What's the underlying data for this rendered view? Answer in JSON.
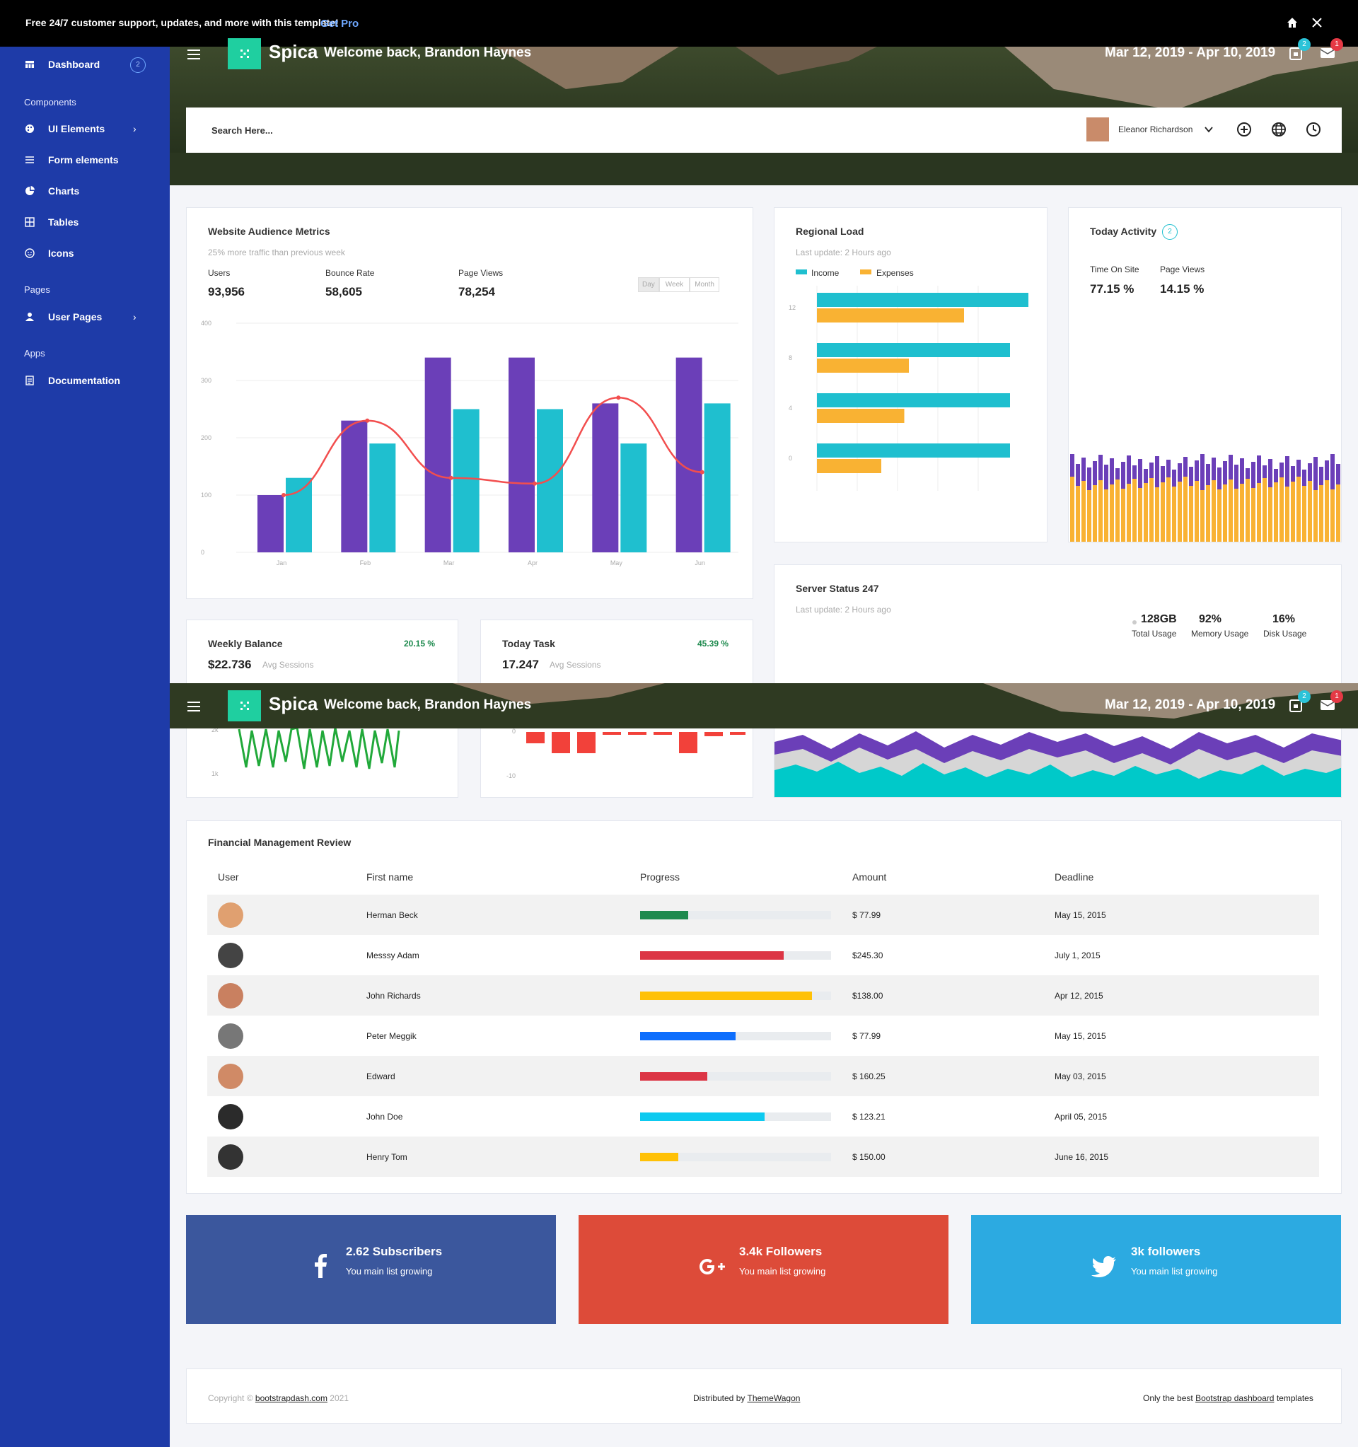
{
  "banner": {
    "message": "Free 24/7 customer support, updates, and more with this template!",
    "cta": "Get Pro"
  },
  "sidebar": {
    "items": [
      {
        "label": "Dashboard",
        "badge": "2",
        "icon": "grid-icon"
      },
      {
        "section": "Components"
      },
      {
        "label": "UI Elements",
        "icon": "palette-icon",
        "chevron": true
      },
      {
        "label": "Form elements",
        "icon": "list-icon"
      },
      {
        "label": "Charts",
        "icon": "pie-icon"
      },
      {
        "label": "Tables",
        "icon": "table-icon"
      },
      {
        "label": "Icons",
        "icon": "smile-icon"
      },
      {
        "section": "Pages"
      },
      {
        "label": "User Pages",
        "icon": "user-icon",
        "chevron": true
      },
      {
        "section": "Apps"
      },
      {
        "label": "Documentation",
        "icon": "doc-icon"
      }
    ]
  },
  "header": {
    "brand": "Spica",
    "welcome": "Welcome back, Brandon Haynes",
    "date_range": "Mar 12, 2019 - Apr 10, 2019",
    "bell_badge": "2",
    "mail_badge": "1"
  },
  "search": {
    "placeholder": "Search Here...",
    "user": "Eleanor Richardson"
  },
  "audience": {
    "title": "Website Audience Metrics",
    "subtitle": "25% more traffic than previous week",
    "metrics": [
      {
        "label": "Users",
        "value": "93,956"
      },
      {
        "label": "Bounce Rate",
        "value": "58,605"
      },
      {
        "label": "Page Views",
        "value": "78,254"
      }
    ],
    "toggles": [
      "Day",
      "Week",
      "Month"
    ]
  },
  "regional": {
    "title": "Regional Load",
    "subtitle": "Last update: 2 Hours ago",
    "legend": [
      "Income",
      "Expenses"
    ]
  },
  "activity": {
    "title": "Today Activity",
    "badge": "2",
    "metrics": [
      {
        "label": "Time On Site",
        "value": "77.15 %"
      },
      {
        "label": "Page Views",
        "value": "14.15 %"
      }
    ]
  },
  "server": {
    "title": "Server Status 247",
    "subtitle": "Last update: 2 Hours ago",
    "stats": [
      {
        "value": "128GB",
        "label": "Total Usage"
      },
      {
        "value": "92%",
        "label": "Memory Usage"
      },
      {
        "value": "16%",
        "label": "Disk Usage"
      }
    ]
  },
  "weekly": {
    "title": "Weekly Balance",
    "pct": "20.15 %",
    "value": "$22.736",
    "sub": "Avg Sessions",
    "ticks": [
      "2k",
      "1k"
    ]
  },
  "task": {
    "title": "Today Task",
    "pct": "45.39 %",
    "value": "17.247",
    "sub": "Avg Sessions",
    "ticks": [
      "0",
      "-10"
    ]
  },
  "finance": {
    "title": "Financial Management Review",
    "columns": [
      "User",
      "First name",
      "Progress",
      "Amount",
      "Deadline"
    ],
    "rows": [
      {
        "name": "Herman Beck",
        "progress": 25,
        "color": "#1e8a4e",
        "amount": "$ 77.99",
        "deadline": "May 15, 2015"
      },
      {
        "name": "Messsy Adam",
        "progress": 75,
        "color": "#dc3545",
        "amount": "$245.30",
        "deadline": "July 1, 2015"
      },
      {
        "name": "John Richards",
        "progress": 90,
        "color": "#ffc107",
        "amount": "$138.00",
        "deadline": "Apr 12, 2015"
      },
      {
        "name": "Peter Meggik",
        "progress": 50,
        "color": "#0d6efd",
        "amount": "$ 77.99",
        "deadline": "May 15, 2015"
      },
      {
        "name": "Edward",
        "progress": 35,
        "color": "#dc3545",
        "amount": "$ 160.25",
        "deadline": "May 03, 2015"
      },
      {
        "name": "John Doe",
        "progress": 65,
        "color": "#0dcaf0",
        "amount": "$ 123.21",
        "deadline": "April 05, 2015"
      },
      {
        "name": "Henry Tom",
        "progress": 20,
        "color": "#ffc107",
        "amount": "$ 150.00",
        "deadline": "June 16, 2015"
      }
    ]
  },
  "social": [
    {
      "title": "2.62 Subscribers",
      "sub": "You main list growing",
      "icon": "facebook-icon",
      "color": "#3b579d"
    },
    {
      "title": "3.4k Followers",
      "sub": "You main list growing",
      "icon": "google-plus-icon",
      "color": "#dd4b39"
    },
    {
      "title": "3k followers",
      "sub": "You main list growing",
      "icon": "twitter-icon",
      "color": "#2caae1"
    }
  ],
  "footer": {
    "copyright": "Copyright ©",
    "link1": "bootstrapdash.com",
    "year": "2021",
    "distributed": "Distributed by",
    "link2": "ThemeWagon",
    "best": "Only the best",
    "link3": "Bootstrap dashboard",
    "templates": "templates"
  },
  "chart_data": [
    {
      "type": "bar",
      "title": "Website Audience Metrics",
      "categories": [
        "Jan",
        "Feb",
        "Mar",
        "Apr",
        "May",
        "Jun"
      ],
      "series": [
        {
          "values": [
            100,
            230,
            340,
            340,
            260,
            340
          ]
        },
        {
          "values": [
            130,
            190,
            250,
            250,
            190,
            260
          ]
        },
        {
          "values": [
            100,
            230,
            130,
            120,
            270,
            140
          ]
        }
      ],
      "ylim": [
        0,
        400
      ],
      "yticks": [
        "400",
        "300",
        "200",
        "100",
        "0"
      ],
      "colors": [
        "#6b3fb8",
        "#1fbfcf",
        "#f24e4e"
      ]
    },
    {
      "type": "bar",
      "title": "Regional Load",
      "categories": [
        "12",
        "8",
        "4",
        "0"
      ],
      "series": [
        {
          "name": "Income",
          "values": [
            23,
            21,
            21,
            21
          ]
        },
        {
          "name": "Expenses",
          "values": [
            16,
            10,
            9.5,
            7
          ]
        }
      ],
      "colors": [
        "#1fbfcf",
        "#f9b233"
      ]
    }
  ]
}
